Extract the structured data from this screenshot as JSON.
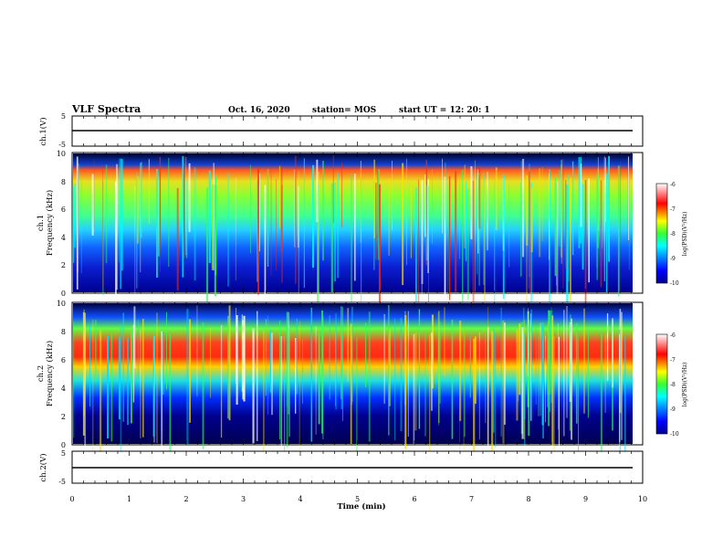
{
  "header": {
    "title": "VLF Spectra",
    "date": "Oct. 16, 2020",
    "station": "station= MOS",
    "start_ut": "start  UT  =    12: 20: 1"
  },
  "chart_data": [
    {
      "type": "line",
      "name": "top-waveform",
      "ylabel": "ch.1(V)",
      "ylim": [
        -5,
        5
      ],
      "yticks": [
        "5",
        "-5"
      ],
      "x": [
        0,
        9.83
      ],
      "y": [
        0,
        0
      ]
    },
    {
      "type": "heatmap",
      "name": "ch1-spectrogram",
      "ylabel_lines": [
        "ch.1",
        "Frequency (kHz)"
      ],
      "ylim": [
        0,
        10
      ],
      "yticks": [
        "0",
        "2",
        "4",
        "6",
        "8",
        "10"
      ],
      "xlim": [
        0,
        10
      ],
      "data_extent_min": 9.83,
      "colorbar": {
        "label": "log(PSD)(V²/Hz)",
        "ticks": [
          "-6",
          "-7",
          "-8",
          "-9",
          "-10"
        ],
        "range": [
          -10,
          -6
        ]
      },
      "dominant_band_khz": [
        6,
        10
      ]
    },
    {
      "type": "heatmap",
      "name": "ch2-spectrogram",
      "ylabel_lines": [
        "ch.2",
        "Frequency (kHz)"
      ],
      "ylim": [
        0,
        10
      ],
      "yticks": [
        "0",
        "2",
        "4",
        "6",
        "8",
        "10"
      ],
      "xlim": [
        0,
        10
      ],
      "data_extent_min": 9.83,
      "colorbar": {
        "label": "log(PSD)(V²/Hz)",
        "ticks": [
          "-6",
          "-7",
          "-8",
          "-9",
          "-10"
        ],
        "range": [
          -10,
          -6
        ]
      },
      "dominant_band_khz": [
        5,
        8
      ]
    },
    {
      "type": "line",
      "name": "bottom-waveform",
      "ylabel": "ch.2(V)",
      "ylim": [
        -5,
        5
      ],
      "yticks": [
        "5",
        "-5"
      ],
      "x": [
        0,
        9.83
      ],
      "y": [
        0,
        0
      ]
    }
  ],
  "xaxis": {
    "label": "Time (min)",
    "ticks": [
      "0",
      "1",
      "2",
      "3",
      "4",
      "5",
      "6",
      "7",
      "8",
      "9",
      "10"
    ]
  }
}
